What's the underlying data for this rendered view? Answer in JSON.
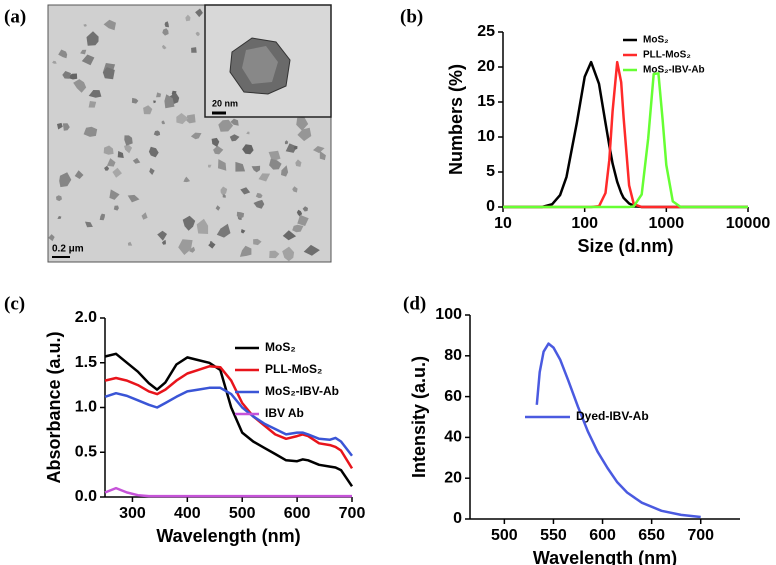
{
  "image": {
    "label": "(a)",
    "scale_bar": "0.2 μm",
    "inset_scale_bar": "20 nm"
  },
  "chart_data": [
    {
      "type": "line",
      "label": "(b)",
      "x_label": "Size (d.nm)",
      "y_label": "Numbers (%)",
      "xscale": "log",
      "x": [
        10,
        20,
        30,
        40,
        50,
        60,
        80,
        100,
        120,
        150,
        180,
        200,
        220,
        250,
        280,
        300,
        350,
        400,
        500,
        600,
        700,
        800,
        900,
        1000,
        1200,
        1500,
        2000,
        5000,
        10000
      ],
      "series": [
        {
          "name": "MoS₂",
          "color": "#000000",
          "values": [
            0,
            0,
            0,
            0.4,
            1.7,
            4.3,
            12.0,
            18.6,
            20.7,
            17.6,
            12.0,
            8.8,
            6.2,
            3.6,
            2.0,
            1.3,
            0.5,
            0.2,
            0,
            0,
            0,
            0,
            0,
            0,
            0,
            0,
            0,
            0,
            0
          ]
        },
        {
          "name": "PLL-MoS₂",
          "color": "#ff2a2a",
          "values": [
            0,
            0,
            0,
            0,
            0,
            0,
            0,
            0,
            0,
            0.1,
            2.0,
            6.7,
            13.7,
            20.7,
            17.8,
            12.8,
            3.1,
            0.4,
            0,
            0,
            0,
            0,
            0,
            0,
            0,
            0,
            0,
            0,
            0
          ]
        },
        {
          "name": "MoS₂-IBV-Ab",
          "color": "#66ff33",
          "values": [
            0,
            0,
            0,
            0,
            0,
            0,
            0,
            0,
            0,
            0,
            0,
            0,
            0,
            0,
            0,
            0,
            0,
            0.1,
            1.8,
            9.8,
            19.0,
            19.1,
            12.5,
            6.0,
            0.8,
            0,
            0,
            0,
            0
          ]
        }
      ],
      "xlim": [
        10,
        10000
      ],
      "xticks": [
        10,
        100,
        1000,
        10000
      ],
      "ylim": [
        0,
        25
      ],
      "yticks": [
        0,
        5,
        10,
        15,
        20,
        25
      ],
      "legend": "upper right"
    },
    {
      "type": "line",
      "label": "(c)",
      "x_label": "Wavelength (nm)",
      "y_label": "Absorbance (a.u.)",
      "x": [
        250,
        270,
        290,
        310,
        330,
        345,
        360,
        380,
        400,
        420,
        440,
        460,
        480,
        500,
        520,
        540,
        560,
        580,
        600,
        610,
        620,
        640,
        660,
        670,
        680,
        700
      ],
      "series": [
        {
          "name": "MoS₂",
          "color": "#000000",
          "values": [
            1.57,
            1.6,
            1.5,
            1.4,
            1.27,
            1.2,
            1.28,
            1.48,
            1.56,
            1.53,
            1.5,
            1.42,
            1.0,
            0.72,
            0.62,
            0.55,
            0.48,
            0.41,
            0.4,
            0.42,
            0.41,
            0.36,
            0.34,
            0.33,
            0.3,
            0.12
          ]
        },
        {
          "name": "PLL-MoS₂",
          "color": "#e8141b",
          "values": [
            1.3,
            1.33,
            1.3,
            1.25,
            1.18,
            1.15,
            1.2,
            1.3,
            1.38,
            1.42,
            1.46,
            1.45,
            1.3,
            1.05,
            0.9,
            0.8,
            0.7,
            0.65,
            0.68,
            0.7,
            0.68,
            0.6,
            0.58,
            0.56,
            0.52,
            0.32
          ]
        },
        {
          "name": "MoS₂-IBV-Ab",
          "color": "#3a55d6",
          "values": [
            1.12,
            1.16,
            1.13,
            1.08,
            1.03,
            1.0,
            1.05,
            1.12,
            1.18,
            1.2,
            1.22,
            1.22,
            1.15,
            1.0,
            0.9,
            0.82,
            0.76,
            0.7,
            0.72,
            0.72,
            0.7,
            0.65,
            0.64,
            0.66,
            0.62,
            0.46
          ]
        },
        {
          "name": "IBV Ab",
          "color": "#c653d9",
          "values": [
            0.05,
            0.1,
            0.05,
            0.02,
            0.01,
            0.01,
            0.01,
            0.01,
            0.01,
            0.01,
            0.01,
            0.01,
            0.01,
            0.01,
            0.01,
            0.01,
            0.01,
            0.01,
            0.01,
            0.01,
            0.01,
            0.01,
            0.01,
            0.01,
            0.01,
            0.01
          ]
        }
      ],
      "xlim": [
        250,
        700
      ],
      "xticks": [
        300,
        400,
        500,
        600,
        700
      ],
      "ylim": [
        0,
        2
      ],
      "yticks": [
        {
          "value": 0,
          "label": "0.0"
        },
        0.5,
        {
          "value": 1,
          "label": "1.0"
        },
        1.5,
        {
          "value": 2,
          "label": "2.0"
        }
      ],
      "legend": "upper right"
    },
    {
      "type": "line",
      "label": "(d)",
      "x_label": "Wavelength (nm)",
      "y_label": "Intensity (a.u.)",
      "x": [
        533,
        536,
        540,
        545,
        550,
        557,
        565,
        575,
        585,
        595,
        605,
        615,
        625,
        640,
        660,
        680,
        700
      ],
      "series": [
        {
          "name": "Dyed-IBV-Ab",
          "color": "#4a5ae0",
          "values": [
            56,
            72,
            82,
            86,
            84,
            78,
            68,
            55,
            43,
            33,
            25,
            18,
            13,
            8,
            4,
            2,
            1
          ]
        }
      ],
      "xlim": [
        465,
        740
      ],
      "xticks": [
        500,
        550,
        600,
        650,
        700
      ],
      "ylim": [
        0,
        100
      ],
      "yticks": [
        0,
        20,
        40,
        60,
        80,
        100
      ],
      "legend": "center right"
    }
  ]
}
